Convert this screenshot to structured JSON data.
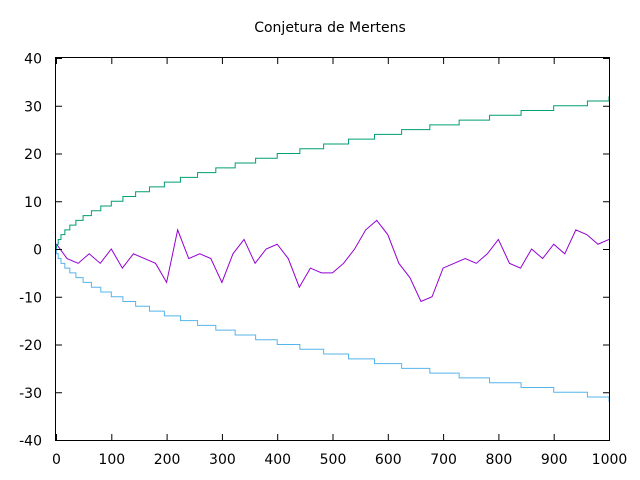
{
  "chart_data": {
    "type": "line",
    "title": "Conjetura de Mertens",
    "xlabel": "",
    "ylabel": "",
    "xlim": [
      0,
      1000
    ],
    "ylim": [
      -40,
      40
    ],
    "grid": false,
    "legend": "none",
    "x_ticks": [
      "0",
      "100",
      "200",
      "300",
      "400",
      "500",
      "600",
      "700",
      "800",
      "900",
      "1000"
    ],
    "y_ticks": [
      "40",
      "30",
      "20",
      "10",
      "0",
      "-10",
      "-20",
      "-30",
      "-40"
    ],
    "series": [
      {
        "color": "#009e73",
        "style": "step",
        "x": [
          1,
          4,
          9,
          16,
          25,
          36,
          49,
          64,
          81,
          100,
          121,
          144,
          169,
          196,
          225,
          256,
          289,
          324,
          361,
          400,
          441,
          484,
          529,
          576,
          625,
          676,
          729,
          784,
          841,
          900,
          961,
          1000
        ],
        "y": [
          1,
          2,
          3,
          4,
          5,
          6,
          7,
          8,
          9,
          10,
          11,
          12,
          13,
          14,
          15,
          16,
          17,
          18,
          19,
          20,
          21,
          22,
          23,
          24,
          25,
          26,
          27,
          28,
          29,
          30,
          31,
          32
        ]
      },
      {
        "color": "#56b4e9",
        "style": "step",
        "x": [
          1,
          4,
          9,
          16,
          25,
          36,
          49,
          64,
          81,
          100,
          121,
          144,
          169,
          196,
          225,
          256,
          289,
          324,
          361,
          400,
          441,
          484,
          529,
          576,
          625,
          676,
          729,
          784,
          841,
          900,
          961,
          1000
        ],
        "y": [
          -1,
          -2,
          -3,
          -4,
          -5,
          -6,
          -7,
          -8,
          -9,
          -10,
          -11,
          -12,
          -13,
          -14,
          -15,
          -16,
          -17,
          -18,
          -19,
          -20,
          -21,
          -22,
          -23,
          -24,
          -25,
          -26,
          -27,
          -28,
          -29,
          -30,
          -31,
          -32
        ]
      },
      {
        "color": "#9400d3",
        "style": "line",
        "x": [
          1,
          20,
          40,
          60,
          80,
          100,
          120,
          140,
          160,
          180,
          200,
          220,
          240,
          260,
          280,
          300,
          320,
          340,
          360,
          380,
          400,
          420,
          440,
          460,
          480,
          500,
          520,
          540,
          560,
          580,
          600,
          620,
          640,
          660,
          680,
          700,
          720,
          740,
          760,
          780,
          800,
          820,
          840,
          860,
          880,
          900,
          920,
          940,
          960,
          980,
          1000
        ],
        "y": [
          1,
          -2,
          -3,
          -1,
          -3,
          0,
          -4,
          -1,
          -2,
          -3,
          -7,
          4,
          -2,
          -1,
          -2,
          -7,
          -1,
          2,
          -3,
          0,
          1,
          -2,
          -8,
          -4,
          -5,
          -5,
          -3,
          0,
          4,
          6,
          3,
          -3,
          -6,
          -11,
          -10,
          -4,
          -3,
          -2,
          -3,
          -1,
          2,
          -3,
          -4,
          0,
          -2,
          1,
          -1,
          4,
          3,
          1,
          2
        ]
      }
    ]
  }
}
